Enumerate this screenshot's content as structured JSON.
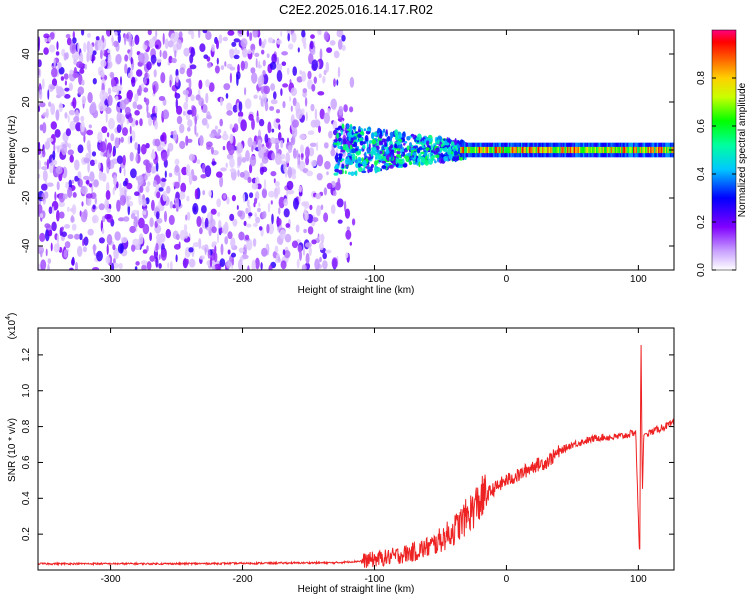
{
  "title": "C2E2.2025.016.14.17.R02",
  "chart_data": [
    {
      "type": "heatmap",
      "xlabel": "Height of straight line (km)",
      "ylabel": "Frequency (Hz)",
      "xlim": [
        -355,
        127
      ],
      "ylim": [
        -50,
        50
      ],
      "xticks": [
        -300,
        -200,
        -100,
        0,
        100
      ],
      "yticks": [
        -40,
        -20,
        0,
        20,
        40
      ],
      "colorbar": {
        "label": "Normalized spectral amplitude",
        "range": [
          0.0,
          1.0
        ],
        "ticks": [
          "0.0",
          "0.2",
          "0.4",
          "0.6",
          "0.8"
        ],
        "colormap": [
          "#ffffff",
          "#8000ff",
          "#0000ff",
          "#00ffff",
          "#00ff00",
          "#ffff00",
          "#ff8000",
          "#ff0000",
          "#ff00ff"
        ]
      },
      "description_regions": [
        {
          "x_range": [
            -355,
            -140
          ],
          "f_range": [
            -50,
            50
          ],
          "amplitude": 0.15,
          "kind": "noise"
        },
        {
          "x_range": [
            -140,
            -95
          ],
          "f_range": [
            -50,
            50
          ],
          "amplitude": 0.05,
          "kind": "sparse noise"
        },
        {
          "x_range": [
            -130,
            -30
          ],
          "f_range": [
            -12,
            10
          ],
          "amplitude": 0.45,
          "kind": "signal"
        },
        {
          "x_range": [
            -30,
            127
          ],
          "f_range": [
            -3,
            3
          ],
          "amplitude": 0.85,
          "kind": "carrier"
        }
      ]
    },
    {
      "type": "line",
      "xlabel": "Height of straight line (km)",
      "ylabel": "SNR (10 * v/v)",
      "yscale_label": "(x10",
      "yscale_exp": "4",
      "xlim": [
        -355,
        127
      ],
      "ylim": [
        0,
        1.35
      ],
      "xticks": [
        -300,
        -200,
        -100,
        0,
        100
      ],
      "yticks": [
        0.2,
        0.4,
        0.6,
        0.8,
        1.0,
        1.2
      ],
      "color": "#ee2222",
      "series": [
        {
          "x": [
            -355,
            -300,
            -250,
            -200,
            -150,
            -130,
            -110,
            -90,
            -70,
            -55,
            -40,
            -30,
            -22,
            -18,
            -10,
            0,
            10,
            20,
            30,
            40,
            50,
            60,
            70,
            80,
            90,
            98,
            101,
            102,
            103,
            104,
            105,
            110,
            120,
            127
          ],
          "values": [
            0.035,
            0.035,
            0.035,
            0.037,
            0.04,
            0.04,
            0.05,
            0.07,
            0.1,
            0.14,
            0.22,
            0.3,
            0.37,
            0.4,
            0.45,
            0.5,
            0.53,
            0.58,
            0.6,
            0.66,
            0.7,
            0.72,
            0.74,
            0.74,
            0.75,
            0.77,
            0.05,
            1.35,
            0.4,
            0.75,
            0.76,
            0.77,
            0.8,
            0.82
          ]
        }
      ]
    }
  ]
}
